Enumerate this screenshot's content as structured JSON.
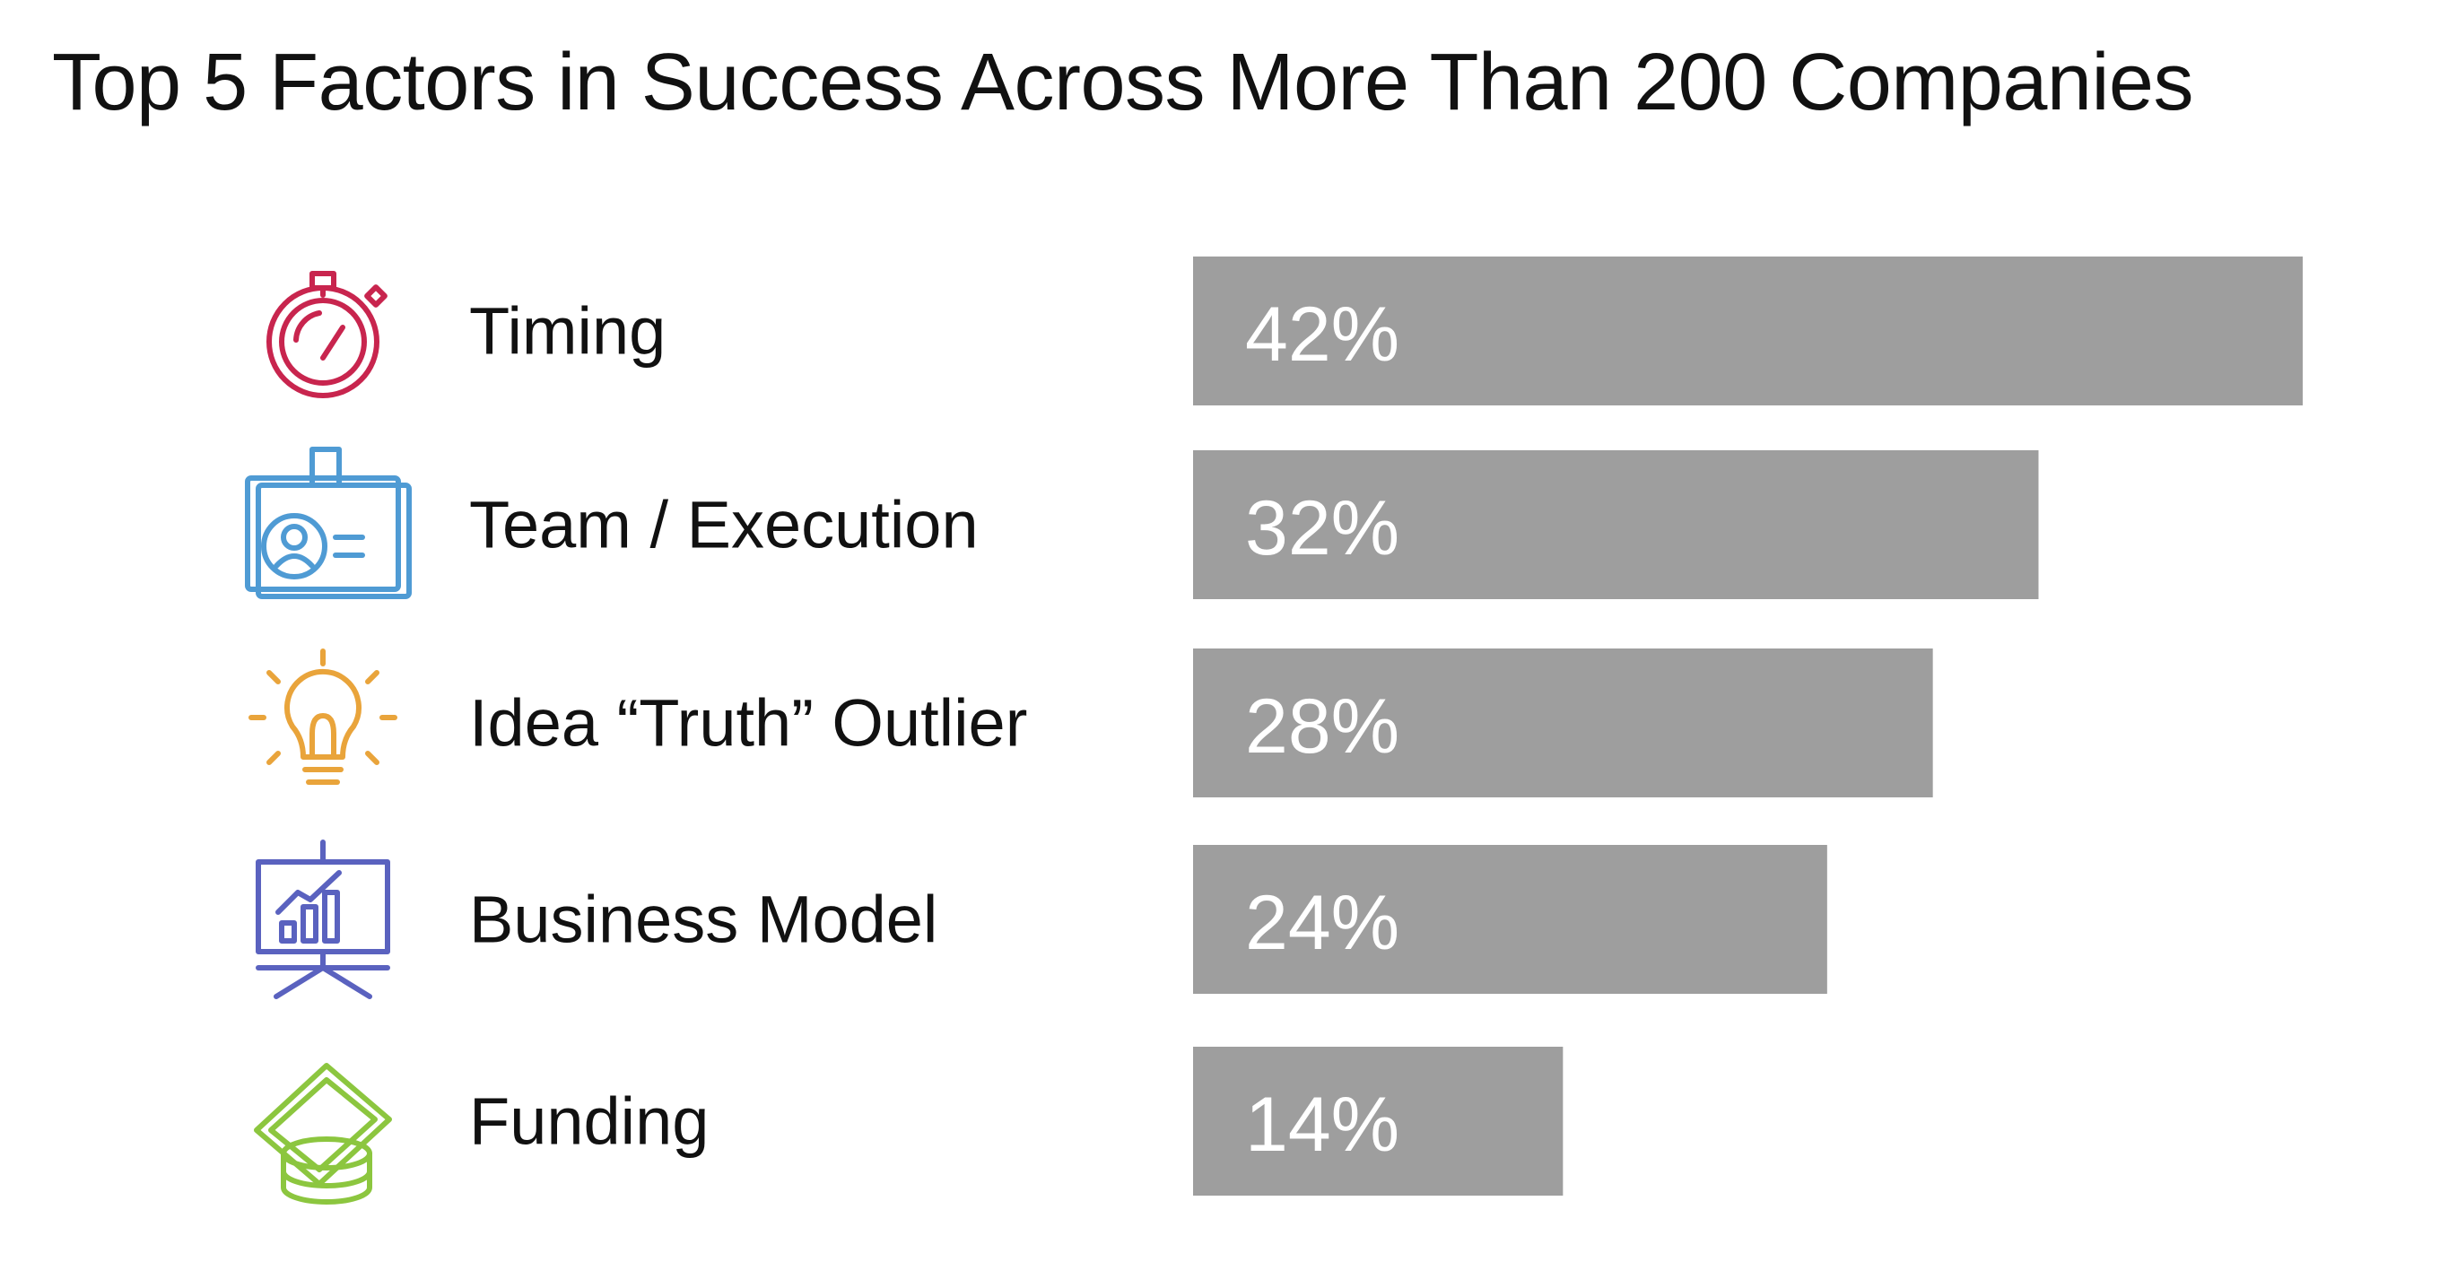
{
  "chart_data": {
    "type": "bar",
    "orientation": "horizontal",
    "title": "Top 5 Factors in Success Across More Than 200 Companies",
    "categories": [
      "Timing",
      "Team / Execution",
      "Idea “Truth” Outlier",
      "Business Model",
      "Funding"
    ],
    "values": [
      42,
      32,
      28,
      24,
      14
    ],
    "value_labels": [
      "42%",
      "32%",
      "28%",
      "24%",
      "14%"
    ],
    "unit": "%",
    "xlim": [
      0,
      42
    ],
    "bar_color": "#9e9e9e",
    "grid": false,
    "legend": "none",
    "icons": [
      {
        "name": "stopwatch-icon",
        "color": "#c8254e"
      },
      {
        "name": "id-badge-icon",
        "color": "#4f9bd4"
      },
      {
        "name": "lightbulb-icon",
        "color": "#e9a43b"
      },
      {
        "name": "presentation-chart-icon",
        "color": "#5a62bf"
      },
      {
        "name": "money-coins-icon",
        "color": "#8cc63f"
      }
    ]
  }
}
